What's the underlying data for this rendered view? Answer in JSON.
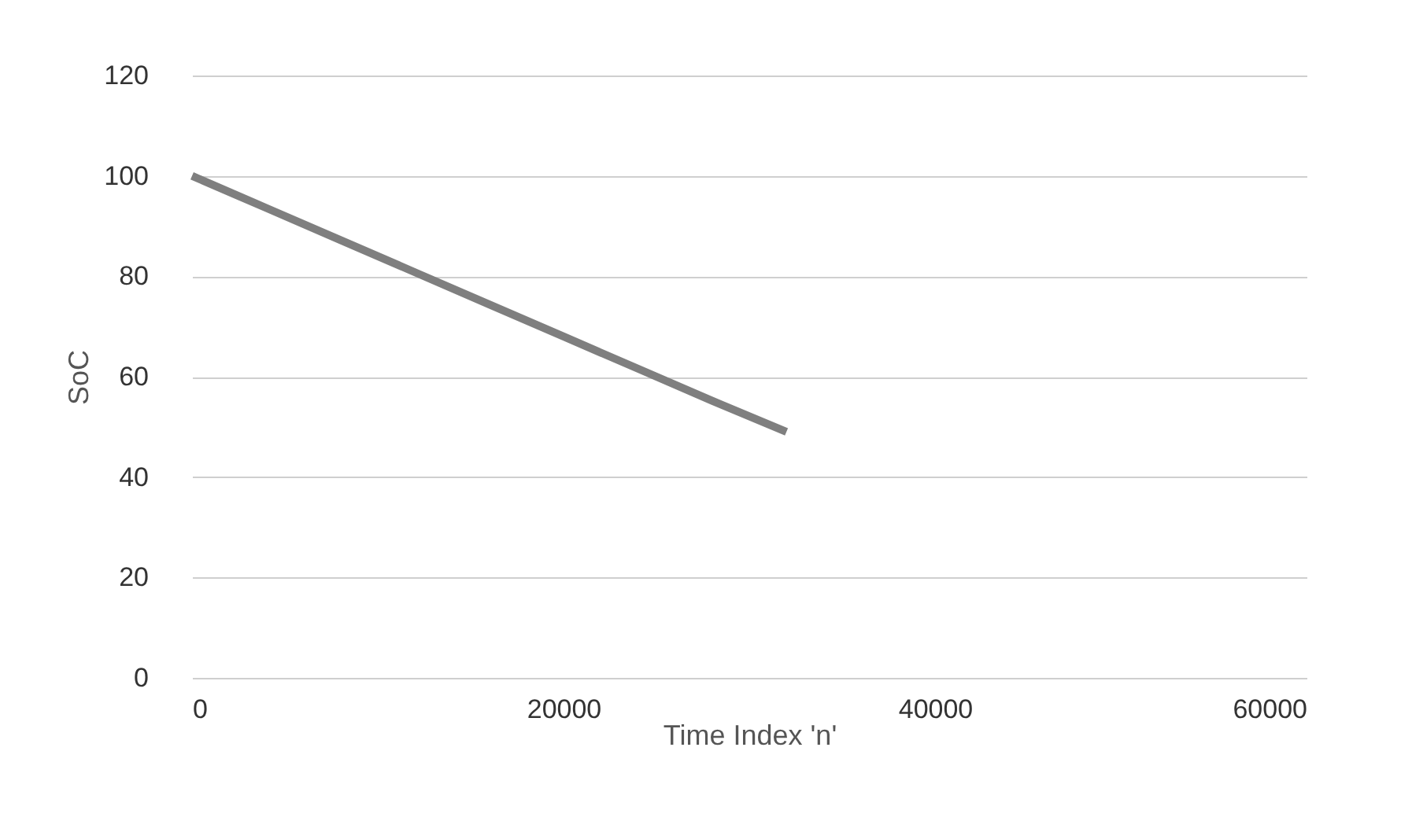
{
  "chart_data": {
    "type": "line",
    "xlabel": "Time Index 'n'",
    "ylabel": "SoC",
    "x": [
      0,
      4000,
      8000,
      12000,
      16000,
      20000,
      24000,
      28000,
      32000
    ],
    "series": [
      {
        "color": "#7f7f7f",
        "values": [
          100,
          93.6,
          87.2,
          80.8,
          74.4,
          68,
          61.6,
          55.2,
          49
        ]
      }
    ],
    "xlim": [
      0,
      60000
    ],
    "xticks": [
      0,
      20000,
      40000,
      60000
    ],
    "ylim": [
      0,
      120
    ],
    "yticks": [
      0,
      20,
      40,
      60,
      80,
      100,
      120
    ],
    "grid": "y",
    "legend": false,
    "marker": "none",
    "line_style": "solid"
  }
}
